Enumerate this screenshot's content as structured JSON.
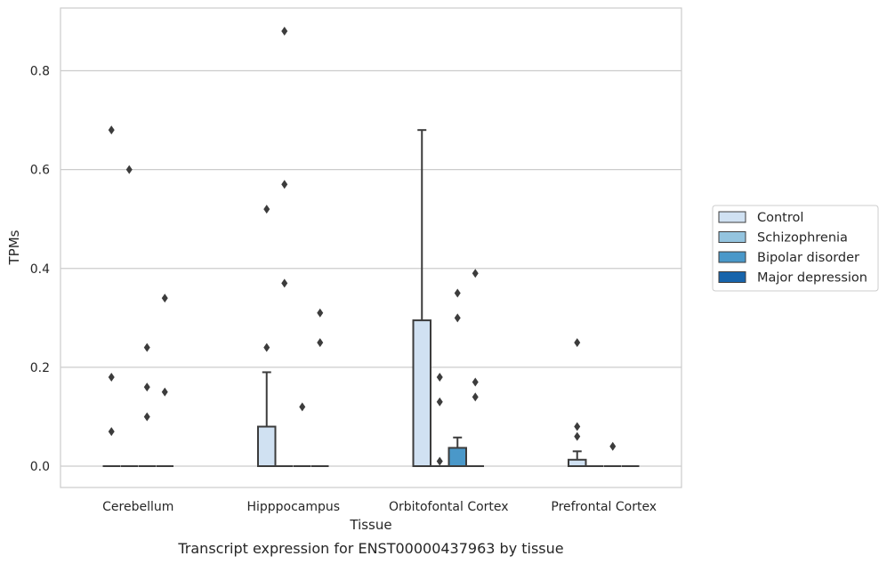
{
  "caption": "Transcript expression for ENST00000437963 by tissue",
  "chart_data": {
    "type": "box",
    "xlabel": "Tissue",
    "ylabel": "TPMs",
    "ylim": [
      -0.043,
      0.93
    ],
    "yticks": [
      "0.0",
      "0.2",
      "0.4",
      "0.6",
      "0.8"
    ],
    "ytick_values": [
      0.0,
      0.2,
      0.4,
      0.6,
      0.8
    ],
    "grid": true,
    "legend_position": "right",
    "categories": [
      "Cerebellum",
      "Hipppocampus",
      "Orbitofontal Cortex",
      "Prefrontal Cortex"
    ],
    "series": [
      {
        "name": "Control",
        "color": "#d0e1f2",
        "boxes": [
          {
            "q1": 0,
            "median": 0,
            "q3": 0,
            "whisker_low": 0,
            "whisker_high": 0,
            "outliers": [
              0.07,
              0.18,
              0.68
            ]
          },
          {
            "q1": 0,
            "median": 0,
            "q3": 0.08,
            "whisker_low": 0,
            "whisker_high": 0.19,
            "outliers": [
              0.24,
              0.52
            ]
          },
          {
            "q1": 0,
            "median": 0,
            "q3": 0.295,
            "whisker_low": 0,
            "whisker_high": 0.68,
            "outliers": []
          },
          {
            "q1": 0,
            "median": 0,
            "q3": 0.013,
            "whisker_low": 0,
            "whisker_high": 0.03,
            "outliers": [
              0.06,
              0.08,
              0.25
            ]
          }
        ]
      },
      {
        "name": "Schizophrenia",
        "color": "#94c4df",
        "boxes": [
          {
            "q1": 0,
            "median": 0,
            "q3": 0,
            "whisker_low": 0,
            "whisker_high": 0,
            "outliers": [
              0.6
            ]
          },
          {
            "q1": 0,
            "median": 0,
            "q3": 0,
            "whisker_low": 0,
            "whisker_high": 0,
            "outliers": [
              0.37,
              0.57,
              0.88
            ]
          },
          {
            "q1": 0,
            "median": 0,
            "q3": 0,
            "whisker_low": 0,
            "whisker_high": 0,
            "outliers": [
              0.01,
              0.13,
              0.18
            ]
          },
          {
            "q1": 0,
            "median": 0,
            "q3": 0,
            "whisker_low": 0,
            "whisker_high": 0,
            "outliers": []
          }
        ]
      },
      {
        "name": "Bipolar disorder",
        "color": "#4a98c9",
        "boxes": [
          {
            "q1": 0,
            "median": 0,
            "q3": 0,
            "whisker_low": 0,
            "whisker_high": 0,
            "outliers": [
              0.1,
              0.16,
              0.24
            ]
          },
          {
            "q1": 0,
            "median": 0,
            "q3": 0,
            "whisker_low": 0,
            "whisker_high": 0,
            "outliers": [
              0.12
            ]
          },
          {
            "q1": 0,
            "median": 0,
            "q3": 0.037,
            "whisker_low": 0,
            "whisker_high": 0.058,
            "outliers": [
              0.3,
              0.35
            ]
          },
          {
            "q1": 0,
            "median": 0,
            "q3": 0,
            "whisker_low": 0,
            "whisker_high": 0,
            "outliers": [
              0.04
            ]
          }
        ]
      },
      {
        "name": "Major depression",
        "color": "#1764ab",
        "boxes": [
          {
            "q1": 0,
            "median": 0,
            "q3": 0,
            "whisker_low": 0,
            "whisker_high": 0,
            "outliers": [
              0.15,
              0.34
            ]
          },
          {
            "q1": 0,
            "median": 0,
            "q3": 0,
            "whisker_low": 0,
            "whisker_high": 0,
            "outliers": [
              0.25,
              0.31
            ]
          },
          {
            "q1": 0,
            "median": 0,
            "q3": 0,
            "whisker_low": 0,
            "whisker_high": 0,
            "outliers": [
              0.14,
              0.17,
              0.39
            ]
          },
          {
            "q1": 0,
            "median": 0,
            "q3": 0,
            "whisker_low": 0,
            "whisker_high": 0,
            "outliers": []
          }
        ]
      }
    ]
  }
}
